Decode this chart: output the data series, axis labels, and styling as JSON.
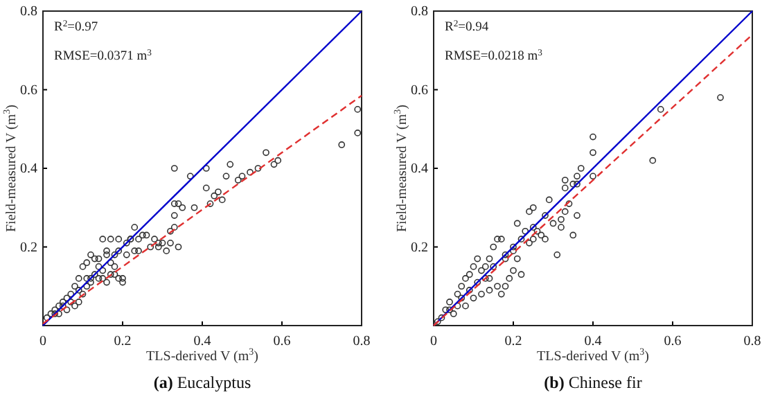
{
  "chart_data": [
    {
      "type": "scatter",
      "title": "(a) Eucalyptus",
      "xlabel": "TLS-derived V (m$^{3}$)",
      "ylabel": "Field-measured V (m$^{3}$)",
      "annotations": [
        "R$^{2}$=0.97",
        "RMSE=0.0371 m$^{3}$"
      ],
      "xlim": [
        0,
        0.8
      ],
      "ylim": [
        0,
        0.8
      ],
      "xticks": [
        0,
        0.2,
        0.4,
        0.6,
        0.8
      ],
      "yticks": [
        0.2,
        0.4,
        0.6,
        0.8
      ],
      "grid": false,
      "series": [
        {
          "type": "scatter",
          "color": "#333333",
          "marker": "circle",
          "x": [
            0.79,
            0.79,
            0.75,
            0.59,
            0.58,
            0.56,
            0.54,
            0.52,
            0.5,
            0.49,
            0.47,
            0.46,
            0.45,
            0.44,
            0.43,
            0.42,
            0.41,
            0.38,
            0.41,
            0.35,
            0.37,
            0.33,
            0.33,
            0.34,
            0.34,
            0.33,
            0.33,
            0.32,
            0.32,
            0.29,
            0.29,
            0.28,
            0.26,
            0.25,
            0.24,
            0.23,
            0.23,
            0.22,
            0.21,
            0.19,
            0.19,
            0.18,
            0.17,
            0.16,
            0.15,
            0.14,
            0.13,
            0.12,
            0.11,
            0.1,
            0.09,
            0.08,
            0.07,
            0.05,
            0.04,
            0.03,
            0.02,
            0.01,
            0.12,
            0.11,
            0.1,
            0.09,
            0.08,
            0.06,
            0.04,
            0.2,
            0.17,
            0.14,
            0.16,
            0.15,
            0.12,
            0.16,
            0.22,
            0.06,
            0.07,
            0.05,
            0.03,
            0.09,
            0.11,
            0.13,
            0.14,
            0.15,
            0.18,
            0.19,
            0.2,
            0.18,
            0.17,
            0.21,
            0.24,
            0.27,
            0.3,
            0.31
          ],
          "values": [
            0.55,
            0.49,
            0.46,
            0.42,
            0.41,
            0.44,
            0.4,
            0.39,
            0.38,
            0.37,
            0.41,
            0.38,
            0.32,
            0.34,
            0.33,
            0.31,
            0.35,
            0.3,
            0.4,
            0.3,
            0.38,
            0.4,
            0.31,
            0.31,
            0.2,
            0.25,
            0.28,
            0.24,
            0.21,
            0.21,
            0.2,
            0.22,
            0.23,
            0.23,
            0.22,
            0.19,
            0.25,
            0.22,
            0.21,
            0.22,
            0.19,
            0.18,
            0.22,
            0.19,
            0.22,
            0.17,
            0.17,
            0.18,
            0.16,
            0.15,
            0.12,
            0.1,
            0.08,
            0.06,
            0.05,
            0.04,
            0.03,
            0.02,
            0.11,
            0.1,
            0.08,
            0.06,
            0.05,
            0.04,
            0.03,
            0.11,
            0.13,
            0.15,
            0.11,
            0.12,
            0.12,
            0.18,
            0.22,
            0.07,
            0.06,
            0.05,
            0.03,
            0.09,
            0.12,
            0.13,
            0.12,
            0.14,
            0.13,
            0.12,
            0.12,
            0.15,
            0.16,
            0.18,
            0.19,
            0.2,
            0.21,
            0.19
          ]
        },
        {
          "type": "line",
          "color": "#0000cc",
          "line_style": "solid",
          "x": [
            0,
            0.8
          ],
          "values": [
            0,
            0.8
          ]
        },
        {
          "type": "line",
          "color": "#e03030",
          "line_style": "dashed",
          "x": [
            0,
            0.8
          ],
          "values": [
            0.005,
            0.585
          ]
        }
      ]
    },
    {
      "type": "scatter",
      "title": "(b) Chinese fir",
      "xlabel": "TLS-derived V (m$^{3}$)",
      "ylabel": "Field-measured V (m$^{3}$)",
      "annotations": [
        "R$^{2}$=0.94",
        "RMSE=0.0218 m$^{3}$"
      ],
      "xlim": [
        0,
        0.8
      ],
      "ylim": [
        0,
        0.8
      ],
      "xticks": [
        0,
        0.2,
        0.4,
        0.6,
        0.8
      ],
      "yticks": [
        0.2,
        0.4,
        0.6,
        0.8
      ],
      "grid": false,
      "series": [
        {
          "type": "scatter",
          "color": "#333333",
          "marker": "circle",
          "x": [
            0.72,
            0.57,
            0.55,
            0.4,
            0.4,
            0.4,
            0.37,
            0.36,
            0.36,
            0.35,
            0.36,
            0.35,
            0.33,
            0.33,
            0.34,
            0.33,
            0.32,
            0.31,
            0.29,
            0.28,
            0.25,
            0.24,
            0.25,
            0.27,
            0.28,
            0.25,
            0.23,
            0.21,
            0.22,
            0.21,
            0.2,
            0.18,
            0.17,
            0.16,
            0.15,
            0.14,
            0.18,
            0.17,
            0.14,
            0.13,
            0.11,
            0.1,
            0.09,
            0.08,
            0.07,
            0.06,
            0.04,
            0.03,
            0.02,
            0.01,
            0.12,
            0.14,
            0.16,
            0.2,
            0.22,
            0.19,
            0.1,
            0.08,
            0.05,
            0.06,
            0.09,
            0.11,
            0.13,
            0.15,
            0.18,
            0.2,
            0.24,
            0.26,
            0.3,
            0.32,
            0.12,
            0.07,
            0.04
          ],
          "values": [
            0.58,
            0.55,
            0.42,
            0.48,
            0.44,
            0.38,
            0.4,
            0.38,
            0.28,
            0.23,
            0.36,
            0.36,
            0.35,
            0.37,
            0.31,
            0.29,
            0.25,
            0.18,
            0.32,
            0.28,
            0.3,
            0.29,
            0.25,
            0.23,
            0.22,
            0.22,
            0.24,
            0.26,
            0.22,
            0.17,
            0.2,
            0.17,
            0.22,
            0.22,
            0.2,
            0.17,
            0.1,
            0.08,
            0.12,
            0.15,
            0.17,
            0.15,
            0.13,
            0.12,
            0.1,
            0.08,
            0.06,
            0.04,
            0.02,
            0.01,
            0.08,
            0.09,
            0.1,
            0.14,
            0.13,
            0.12,
            0.07,
            0.05,
            0.03,
            0.05,
            0.09,
            0.11,
            0.12,
            0.15,
            0.18,
            0.19,
            0.21,
            0.24,
            0.26,
            0.27,
            0.14,
            0.07,
            0.04
          ]
        },
        {
          "type": "line",
          "color": "#0000cc",
          "line_style": "solid",
          "x": [
            0,
            0.8
          ],
          "values": [
            0,
            0.8
          ]
        },
        {
          "type": "line",
          "color": "#e03030",
          "line_style": "dashed",
          "x": [
            0,
            0.8
          ],
          "values": [
            0,
            0.74
          ]
        }
      ]
    }
  ]
}
